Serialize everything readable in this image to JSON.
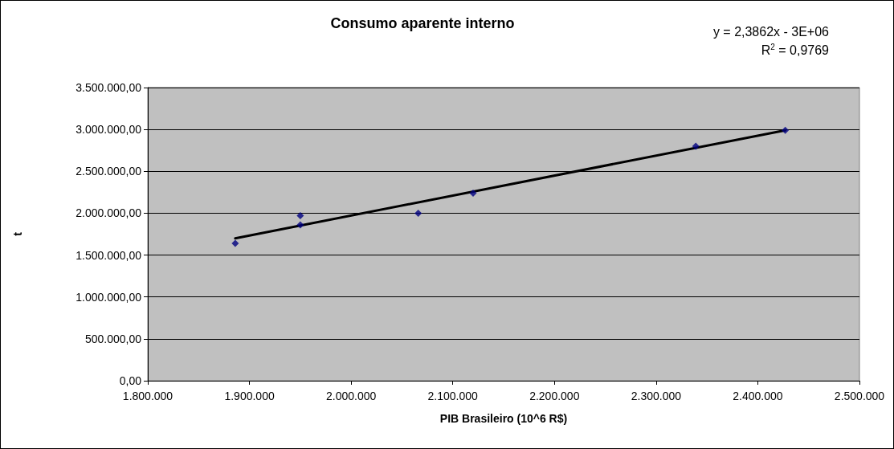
{
  "chart_data": {
    "type": "scatter",
    "title": "Consumo aparente interno",
    "xlabel": "PIB Brasileiro (10^6 R$)",
    "ylabel": "t",
    "annotations": [
      "y = 2,3862x - 3E+06",
      "R$^{2}$ = 0,9769"
    ],
    "series": [
      {
        "color": "#000080",
        "x": [
          1886000,
          1950000,
          1950000,
          2066000,
          2120000,
          2339000,
          2427000
        ],
        "values": [
          1640000,
          1970000,
          1860000,
          2000000,
          2240000,
          2800000,
          2990000
        ]
      },
      {
        "type": "line",
        "color": "#000000",
        "marker": "none",
        "line_style": "solid",
        "x": [
          1886000,
          2427000
        ],
        "values": [
          1700000,
          2990000
        ]
      }
    ],
    "marker": "diamond",
    "xlim": [
      1800000,
      2500000
    ],
    "xticks": [
      {
        "value": 1800000,
        "label": "1.800.000"
      },
      {
        "value": 1900000,
        "label": "1.900.000"
      },
      {
        "value": 2000000,
        "label": "2.000.000"
      },
      {
        "value": 2100000,
        "label": "2.100.000"
      },
      {
        "value": 2200000,
        "label": "2.200.000"
      },
      {
        "value": 2300000,
        "label": "2.300.000"
      },
      {
        "value": 2400000,
        "label": "2.400.000"
      },
      {
        "value": 2500000,
        "label": "2.500.000"
      }
    ],
    "ylim": [
      0,
      3500000
    ],
    "yticks": [
      {
        "value": 0,
        "label": "0,00"
      },
      {
        "value": 500000,
        "label": "500.000,00"
      },
      {
        "value": 1000000,
        "label": "1.000.000,00"
      },
      {
        "value": 1500000,
        "label": "1.500.000,00"
      },
      {
        "value": 2000000,
        "label": "2.000.000,00"
      },
      {
        "value": 2500000,
        "label": "2.500.000,00"
      },
      {
        "value": 3000000,
        "label": "3.000.000,00"
      },
      {
        "value": 3500000,
        "label": "3.500.000,00"
      }
    ],
    "grid": "y"
  }
}
